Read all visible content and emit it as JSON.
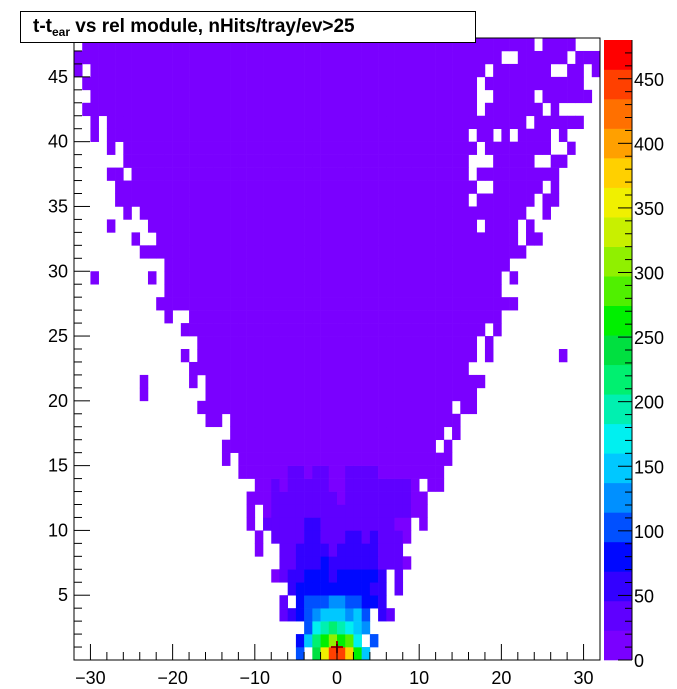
{
  "chart_data": {
    "type": "heatmap",
    "title": {
      "main": "t-t",
      "sub": "ear",
      "rest": " vs rel module, nHits/tray/ev>25"
    },
    "xlabel": "",
    "ylabel": "",
    "xlim": [
      -32,
      32
    ],
    "ylim": [
      0,
      48
    ],
    "xticks": [
      "−30",
      "−20",
      "−10",
      "0",
      "10",
      "20",
      "30"
    ],
    "xtick_values": [
      -30,
      -20,
      -10,
      0,
      10,
      20,
      30
    ],
    "yticks": [
      "5",
      "10",
      "15",
      "20",
      "25",
      "30",
      "35",
      "40",
      "45"
    ],
    "ytick_values": [
      5,
      10,
      15,
      20,
      25,
      30,
      35,
      40,
      45
    ],
    "colorbar": {
      "range": [
        0,
        480
      ],
      "ticks": [
        "0",
        "50",
        "100",
        "150",
        "200",
        "250",
        "300",
        "350",
        "400",
        "450"
      ],
      "tick_values": [
        0,
        50,
        100,
        150,
        200,
        250,
        300,
        350,
        400,
        450
      ],
      "palette": [
        "#7a00ff",
        "#5f00ff",
        "#3300ff",
        "#0008ff",
        "#0050ff",
        "#0090ff",
        "#00c8ff",
        "#00f0f0",
        "#00f0b0",
        "#00f070",
        "#00e040",
        "#00f000",
        "#50f000",
        "#90f000",
        "#c8f000",
        "#f0f000",
        "#ffd000",
        "#ffa000",
        "#ff7000",
        "#ff4000",
        "#ff0000"
      ]
    },
    "peak": {
      "x": 0,
      "y": 0.5,
      "value": 480
    },
    "background_color": "#7a00ff"
  }
}
